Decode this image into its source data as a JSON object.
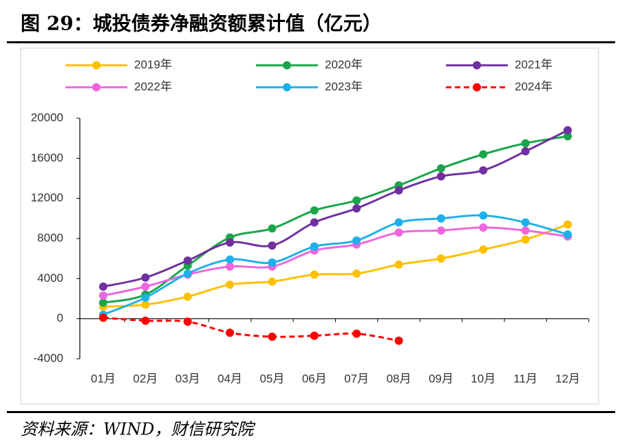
{
  "chart_data": {
    "type": "line",
    "title": "图 29：城投债券净融资额累计值（亿元）",
    "source": "资料来源：WIND，财信研究院",
    "categories": [
      "01月",
      "02月",
      "03月",
      "04月",
      "05月",
      "06月",
      "07月",
      "08月",
      "09月",
      "10月",
      "11月",
      "12月"
    ],
    "ylim": [
      -4000,
      20000
    ],
    "yticks": [
      -4000,
      0,
      4000,
      8000,
      12000,
      16000,
      20000
    ],
    "grid": false,
    "legend": "top",
    "series": [
      {
        "name": "2019年",
        "color": "#FFC000",
        "dashed": false,
        "values": [
          1200,
          1400,
          2200,
          3400,
          3700,
          4400,
          4500,
          5400,
          6000,
          6900,
          7900,
          9400
        ]
      },
      {
        "name": "2020年",
        "color": "#19A64A",
        "dashed": false,
        "values": [
          1600,
          2400,
          5300,
          8100,
          9000,
          10800,
          11800,
          13300,
          15000,
          16400,
          17500,
          18200
        ]
      },
      {
        "name": "2021年",
        "color": "#7030A0",
        "dashed": false,
        "values": [
          3200,
          4100,
          5800,
          7600,
          7300,
          9600,
          11000,
          12800,
          14200,
          14800,
          16700,
          18800
        ]
      },
      {
        "name": "2022年",
        "color": "#EE66DD",
        "dashed": false,
        "values": [
          2300,
          3200,
          4400,
          5200,
          5200,
          6800,
          7400,
          8600,
          8800,
          9100,
          8800,
          8200
        ]
      },
      {
        "name": "2023年",
        "color": "#1EB0E8",
        "dashed": false,
        "values": [
          400,
          2100,
          4500,
          5900,
          5600,
          7200,
          7800,
          9600,
          10000,
          10300,
          9600,
          8400
        ]
      },
      {
        "name": "2024年",
        "color": "#FF0000",
        "dashed": true,
        "values": [
          100,
          -200,
          -300,
          -1400,
          -1800,
          -1700,
          -1500,
          -2200,
          null,
          null,
          null,
          null
        ]
      }
    ]
  }
}
